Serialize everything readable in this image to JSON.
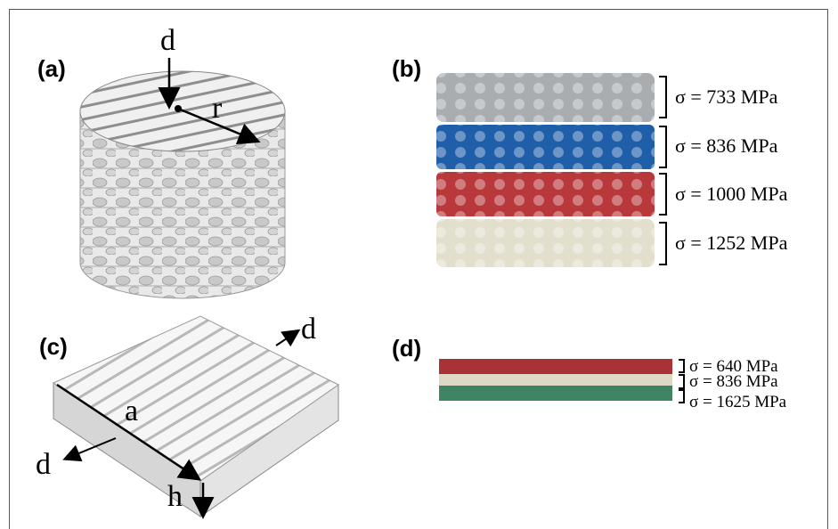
{
  "panels": [
    {
      "label": "(a)",
      "annotations": [
        "d",
        "r"
      ]
    },
    {
      "label": "(b)",
      "stresses": [
        "σ = 733 MPa",
        "σ = 836 MPa",
        "σ = 1000 MPa",
        "σ = 1252 MPa"
      ]
    },
    {
      "label": "(c)",
      "annotations": [
        "d",
        "a",
        "d",
        "h"
      ]
    },
    {
      "label": "(d)",
      "stresses": [
        "σ = 640 MPa",
        "σ = 836 MPa",
        "σ = 1625 MPa"
      ]
    }
  ]
}
